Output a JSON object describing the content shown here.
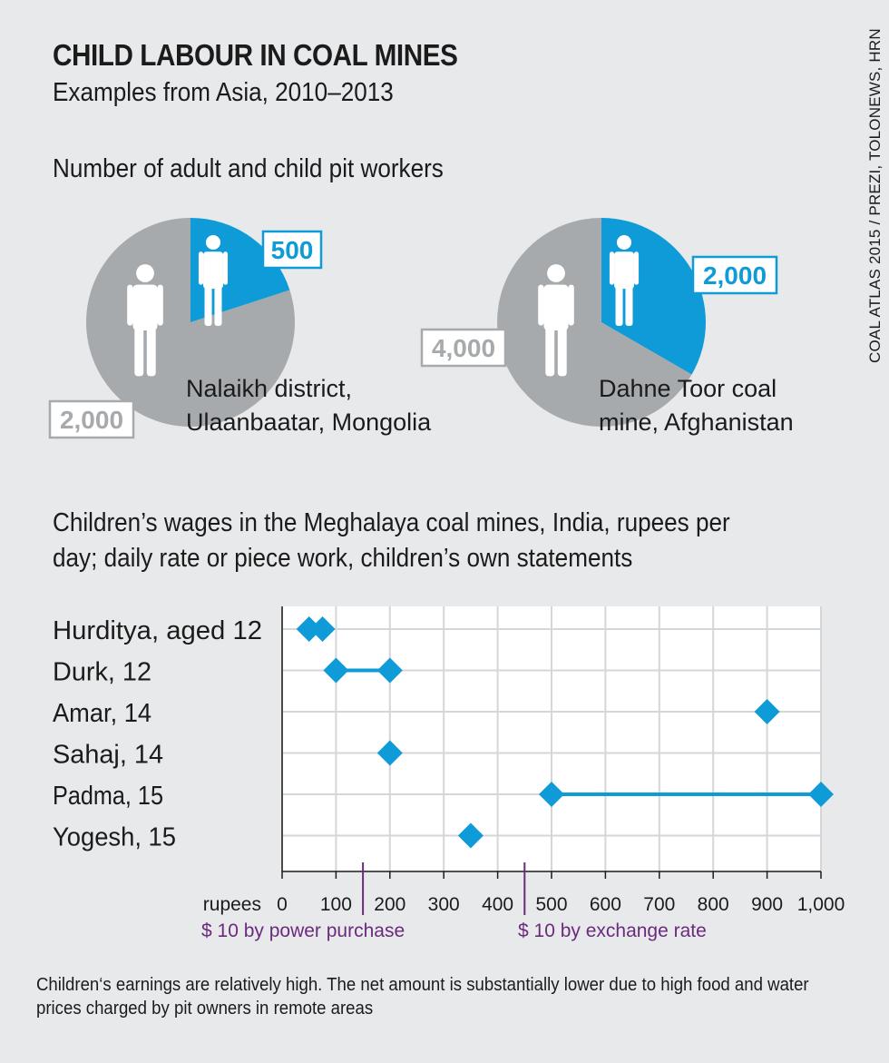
{
  "header": {
    "title": "CHILD LABOUR IN COAL MINES",
    "subtitle": "Examples from Asia, 2010–2013",
    "source": "COAL ATLAS 2015 / PREZI, TOLONEWS, HRN"
  },
  "pies": {
    "heading": "Number of adult and child pit workers",
    "colors": {
      "adult": "#a7aaad",
      "child": "#0f9bd7"
    },
    "items": [
      {
        "location_line1": "Nalaikh district,",
        "location_line2": "Ulaanbaatar, Mongolia",
        "adults": 2000,
        "children": 500,
        "adults_label": "2,000",
        "children_label": "500"
      },
      {
        "location_line1": "Dahne Toor coal",
        "location_line2": "mine, Afghanistan",
        "adults": 4000,
        "children": 2000,
        "adults_label": "4,000",
        "children_label": "2,000"
      }
    ]
  },
  "wages": {
    "heading_line1": "Children’s wages in the Meghalaya coal mines, India, rupees per",
    "heading_line2": "day; daily rate or piece work, children’s own statements",
    "axis_unit": "rupees",
    "reference_lines": [
      {
        "label": "$ 10 by power purchase",
        "value": 150
      },
      {
        "label": "$ 10 by exchange rate",
        "value": 450
      }
    ],
    "reference_color": "#6b2a7e",
    "marker_color": "#0f9bd7"
  },
  "chart_data": [
    {
      "type": "pie",
      "location": "Nalaikh district, Ulaanbaatar, Mongolia",
      "slices": [
        {
          "label": "adult pit workers",
          "value": 2000
        },
        {
          "label": "child pit workers",
          "value": 500
        }
      ]
    },
    {
      "type": "pie",
      "location": "Dahne Toor coal mine, Afghanistan",
      "slices": [
        {
          "label": "adult pit workers",
          "value": 4000
        },
        {
          "label": "child pit workers",
          "value": 2000
        }
      ]
    },
    {
      "type": "scatter",
      "xlabel": "rupees",
      "xlim": [
        0,
        1000
      ],
      "xticks": [
        0,
        100,
        200,
        300,
        400,
        500,
        600,
        700,
        800,
        900,
        1000
      ],
      "xtick_labels": [
        "0",
        "100",
        "200",
        "300",
        "400",
        "500",
        "600",
        "700",
        "800",
        "900",
        "1,000"
      ],
      "grid": true,
      "categories": [
        "Hurditya, aged 12",
        "Durk, 12",
        "Amar, 14",
        "Sahaj, 14",
        "Padma, 15",
        "Yogesh, 15"
      ],
      "ranges": [
        {
          "points": [
            50,
            75
          ],
          "connected": false
        },
        {
          "points": [
            100,
            200
          ],
          "connected": true
        },
        {
          "points": [
            900
          ],
          "connected": false
        },
        {
          "points": [
            200
          ],
          "connected": false
        },
        {
          "points": [
            500,
            1000
          ],
          "connected": true
        },
        {
          "points": [
            350
          ],
          "connected": false
        }
      ]
    }
  ],
  "footnote": "Children‘s earnings are relatively high. The net amount is substantially lower due to high food and water prices charged by pit owners in remote areas"
}
